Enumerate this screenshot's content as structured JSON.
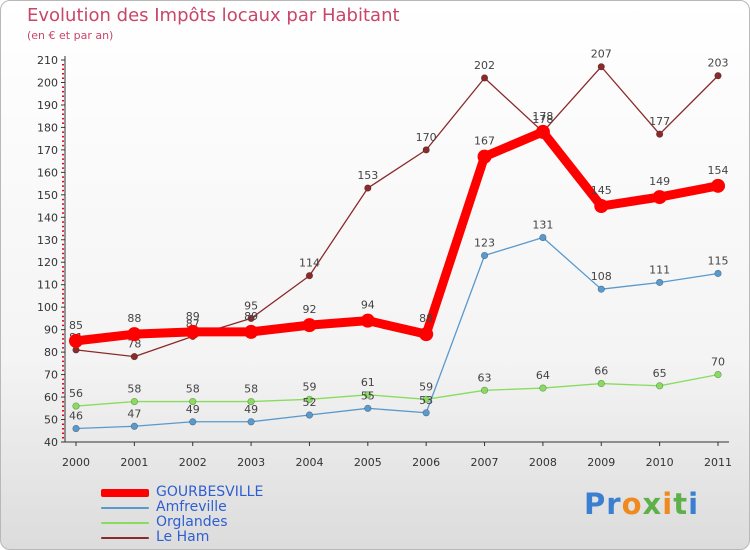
{
  "title": "Evolution des Impôts locaux par Habitant",
  "subtitle": "(en € et par an)",
  "logo": {
    "text": [
      "P",
      "r",
      "o",
      "x",
      "i",
      "t",
      "i"
    ],
    "colors": [
      "#3a7fd0",
      "#3a7fd0",
      "#f08a1e",
      "#5fb04a",
      "#f08a1e",
      "#5fb04a",
      "#3a7fd0"
    ]
  },
  "chart_data": {
    "type": "line",
    "title": "Evolution des Impôts locaux par Habitant",
    "subtitle": "(en € et par an)",
    "x": [
      "2000",
      "2001",
      "2002",
      "2003",
      "2004",
      "2005",
      "2006",
      "2007",
      "2008",
      "2009",
      "2010",
      "2011"
    ],
    "ylim": [
      40,
      210
    ],
    "yticks": [
      "40",
      "50",
      "60",
      "70",
      "80",
      "90",
      "100",
      "110",
      "120",
      "130",
      "140",
      "150",
      "160",
      "170",
      "180",
      "190",
      "200",
      "210"
    ],
    "grid": false,
    "legend_position": "bottom-left",
    "series": [
      {
        "name": "Le Ham",
        "color": "#8b2a2a",
        "values": [
          81,
          78,
          87,
          95,
          114,
          153,
          170,
          202,
          178,
          207,
          177,
          203
        ],
        "labels": [
          "81",
          "78",
          "87",
          "95",
          "114",
          "153",
          "170",
          "202",
          "178",
          "207",
          "177",
          "203"
        ]
      },
      {
        "name": "Orglandes",
        "color": "#88dc5e",
        "values": [
          56,
          58,
          58,
          58,
          59,
          61,
          59,
          63,
          64,
          66,
          65,
          70
        ],
        "labels": [
          "56",
          "58",
          "58",
          "58",
          "59",
          "61",
          "59",
          "63",
          "64",
          "66",
          "65",
          "70"
        ]
      },
      {
        "name": "Amfreville",
        "color": "#5a99cc",
        "values": [
          46,
          47,
          49,
          49,
          52,
          55,
          53,
          123,
          131,
          108,
          111,
          115
        ],
        "labels": [
          "46",
          "47",
          "49",
          "49",
          "52",
          "55",
          "53",
          "123",
          "131",
          "108",
          "111",
          "115"
        ]
      },
      {
        "name": "GOURBESVILLE",
        "color": "#ff0000",
        "values": [
          85,
          88,
          89,
          89,
          92,
          94,
          88,
          167,
          178,
          145,
          149,
          154
        ],
        "labels": [
          "85",
          "88",
          "89",
          "89",
          "92",
          "94",
          "88",
          "167",
          "178",
          "145",
          "149",
          "154"
        ]
      }
    ],
    "legend": [
      "GOURBESVILLE",
      "Amfreville",
      "Orglandes",
      "Le Ham"
    ]
  }
}
